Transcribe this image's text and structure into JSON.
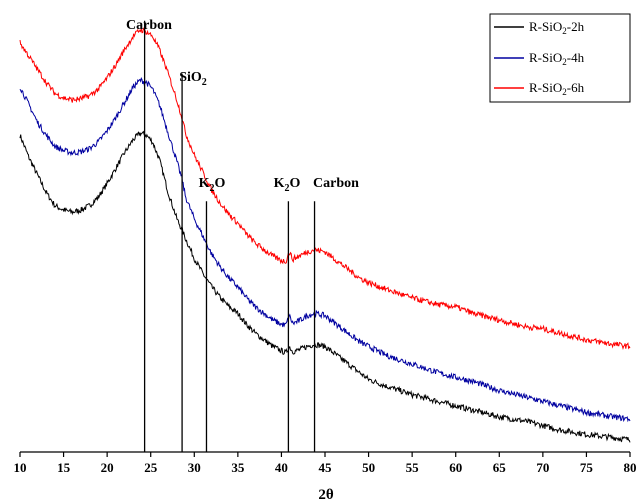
{
  "chart_data": {
    "type": "line",
    "title": "",
    "xlabel": "2θ",
    "ylabel": "",
    "xlim": [
      10,
      80
    ],
    "ylim": [
      0,
      100
    ],
    "xticks": [
      "10",
      "15",
      "20",
      "25",
      "30",
      "35",
      "40",
      "45",
      "50",
      "55",
      "60",
      "65",
      "70",
      "75",
      "80"
    ],
    "grid": false,
    "legend_position": "top-right",
    "series": [
      {
        "name": "R-SiO2-2h",
        "label_parts": [
          "R-SiO",
          "2",
          "-2h"
        ],
        "color": "#000000",
        "points": [
          [
            10,
            72
          ],
          [
            11,
            67
          ],
          [
            12,
            63
          ],
          [
            13,
            59
          ],
          [
            14,
            56
          ],
          [
            15,
            55
          ],
          [
            16,
            54.5
          ],
          [
            17,
            55
          ],
          [
            18,
            56
          ],
          [
            19,
            58
          ],
          [
            20,
            61
          ],
          [
            21,
            64.5
          ],
          [
            22,
            68
          ],
          [
            23,
            71
          ],
          [
            23.8,
            72.5
          ],
          [
            24.5,
            72
          ],
          [
            25.2,
            70.5
          ],
          [
            26,
            66.5
          ],
          [
            27,
            59
          ],
          [
            28,
            53
          ],
          [
            28.6,
            50.5
          ],
          [
            29,
            48.5
          ],
          [
            30,
            44
          ],
          [
            31,
            40.5
          ],
          [
            31.5,
            39
          ],
          [
            32,
            37.5
          ],
          [
            33,
            35
          ],
          [
            34,
            33
          ],
          [
            35,
            31.5
          ],
          [
            36,
            29
          ],
          [
            37,
            27
          ],
          [
            38,
            25.5
          ],
          [
            39,
            24
          ],
          [
            40,
            23
          ],
          [
            40.5,
            22.5
          ],
          [
            40.9,
            24
          ],
          [
            41.3,
            22.8
          ],
          [
            42,
            23.2
          ],
          [
            43,
            24
          ],
          [
            43.8,
            24.5
          ],
          [
            45,
            24
          ],
          [
            46,
            22.5
          ],
          [
            47,
            21
          ],
          [
            48,
            19.5
          ],
          [
            49,
            18
          ],
          [
            50,
            16.5
          ],
          [
            52,
            15
          ],
          [
            55,
            13
          ],
          [
            58,
            11.5
          ],
          [
            60,
            10.5
          ],
          [
            62,
            9.5
          ],
          [
            65,
            8
          ],
          [
            68,
            7
          ],
          [
            70,
            6
          ],
          [
            72,
            5
          ],
          [
            75,
            4
          ],
          [
            78,
            3.3
          ],
          [
            80,
            2.8
          ]
        ]
      },
      {
        "name": "R-SiO2-4h",
        "label_parts": [
          "R-SiO",
          "2",
          "-4h"
        ],
        "color": "#0000a0",
        "points": [
          [
            10,
            83
          ],
          [
            11,
            79
          ],
          [
            12,
            75
          ],
          [
            13,
            72
          ],
          [
            14,
            69.5
          ],
          [
            15,
            68.5
          ],
          [
            16,
            68
          ],
          [
            17,
            68.2
          ],
          [
            18,
            69
          ],
          [
            19,
            70.5
          ],
          [
            20,
            73
          ],
          [
            21,
            76
          ],
          [
            22,
            79.5
          ],
          [
            23,
            83
          ],
          [
            23.8,
            84.5
          ],
          [
            24.5,
            84
          ],
          [
            25.2,
            82.5
          ],
          [
            26,
            79
          ],
          [
            27,
            72.5
          ],
          [
            28,
            66
          ],
          [
            28.6,
            62
          ],
          [
            29,
            58
          ],
          [
            30,
            53
          ],
          [
            31,
            49
          ],
          [
            31.5,
            47
          ],
          [
            32,
            45
          ],
          [
            33,
            42
          ],
          [
            34,
            39.5
          ],
          [
            35,
            37.5
          ],
          [
            36,
            35
          ],
          [
            37,
            33
          ],
          [
            38,
            31.5
          ],
          [
            39,
            30
          ],
          [
            40,
            29
          ],
          [
            40.5,
            28.8
          ],
          [
            40.9,
            31
          ],
          [
            41.3,
            29.2
          ],
          [
            42,
            29.8
          ],
          [
            43,
            31
          ],
          [
            43.8,
            31.5
          ],
          [
            45,
            31
          ],
          [
            46,
            29.5
          ],
          [
            47,
            28
          ],
          [
            48,
            26.5
          ],
          [
            49,
            25
          ],
          [
            50,
            24
          ],
          [
            52,
            22
          ],
          [
            55,
            20
          ],
          [
            58,
            18
          ],
          [
            60,
            17
          ],
          [
            62,
            16
          ],
          [
            65,
            14
          ],
          [
            68,
            12.5
          ],
          [
            70,
            11.5
          ],
          [
            72,
            10.5
          ],
          [
            75,
            9
          ],
          [
            78,
            8
          ],
          [
            80,
            7.5
          ]
        ]
      },
      {
        "name": "R-SiO2-6h",
        "label_parts": [
          "R-SiO",
          "2",
          "-6h"
        ],
        "color": "#ff0000",
        "points": [
          [
            10,
            93
          ],
          [
            11,
            90
          ],
          [
            12,
            87
          ],
          [
            13,
            84
          ],
          [
            14,
            81.5
          ],
          [
            15,
            80.5
          ],
          [
            16,
            80
          ],
          [
            17,
            80.3
          ],
          [
            18,
            81
          ],
          [
            19,
            82.5
          ],
          [
            20,
            85
          ],
          [
            21,
            88
          ],
          [
            22,
            91.5
          ],
          [
            23,
            94.5
          ],
          [
            23.8,
            96
          ],
          [
            24.5,
            95.5
          ],
          [
            25.2,
            94.5
          ],
          [
            26,
            91.5
          ],
          [
            27,
            86
          ],
          [
            28,
            80
          ],
          [
            28.6,
            76
          ],
          [
            29,
            72.5
          ],
          [
            30,
            67.5
          ],
          [
            31,
            63.5
          ],
          [
            31.5,
            61.5
          ],
          [
            32,
            59.5
          ],
          [
            33,
            56.5
          ],
          [
            34,
            54
          ],
          [
            35,
            52
          ],
          [
            36,
            49.5
          ],
          [
            37,
            47.5
          ],
          [
            38,
            46
          ],
          [
            39,
            44.5
          ],
          [
            40,
            43.5
          ],
          [
            40.5,
            43.3
          ],
          [
            40.9,
            45.5
          ],
          [
            41.3,
            43.8
          ],
          [
            42,
            44.5
          ],
          [
            43,
            45.5
          ],
          [
            43.8,
            46
          ],
          [
            45,
            45.5
          ],
          [
            46,
            44
          ],
          [
            47,
            42.5
          ],
          [
            48,
            41
          ],
          [
            49,
            39.5
          ],
          [
            50,
            38.5
          ],
          [
            52,
            37
          ],
          [
            55,
            35
          ],
          [
            58,
            33.5
          ],
          [
            60,
            33
          ],
          [
            62,
            31.5
          ],
          [
            65,
            30
          ],
          [
            68,
            28.5
          ],
          [
            70,
            28
          ],
          [
            72,
            27
          ],
          [
            75,
            25.5
          ],
          [
            78,
            24.5
          ],
          [
            80,
            24
          ]
        ]
      }
    ],
    "reference_lines": [
      {
        "x": 24.3,
        "y_top": 98
      },
      {
        "x": 28.6,
        "y_top": 86
      },
      {
        "x": 31.4,
        "y_top": 57
      },
      {
        "x": 40.8,
        "y_top": 57
      },
      {
        "x": 43.8,
        "y_top": 57
      }
    ],
    "annotations": [
      {
        "id": "carbon-1",
        "main": "Carbon",
        "sub": "",
        "tail": "",
        "x": 24.3
      },
      {
        "id": "sio2",
        "main": "SiO",
        "sub": "2",
        "tail": "",
        "x": 28.6
      },
      {
        "id": "k2o-1",
        "main": "K",
        "sub": "2",
        "tail": "O",
        "x": 31.4
      },
      {
        "id": "k2o-2",
        "main": "K",
        "sub": "2",
        "tail": "O",
        "x": 40.8
      },
      {
        "id": "carbon-2",
        "main": "Carbon",
        "sub": "",
        "tail": "",
        "x": 43.8
      }
    ]
  }
}
